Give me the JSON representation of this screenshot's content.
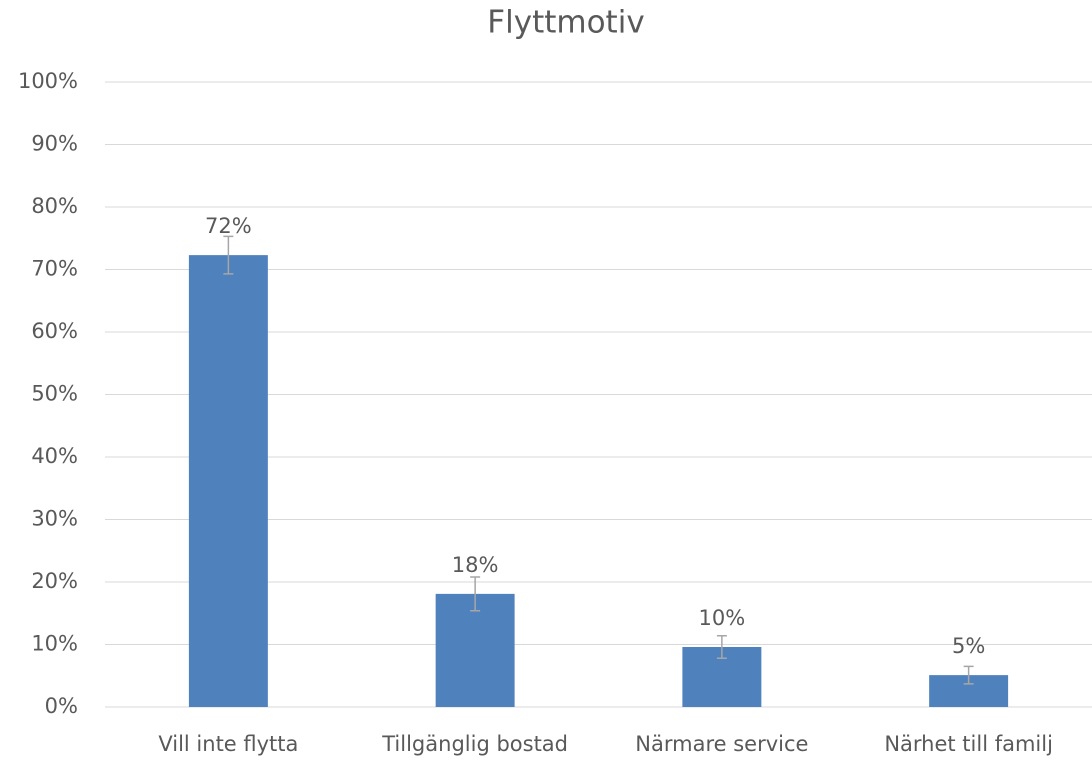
{
  "chart_data": {
    "type": "bar",
    "title": "Flyttmotiv",
    "categories": [
      "Vill inte flytta",
      "Tillgänglig bostad",
      "Närmare service",
      "Närhet till familj"
    ],
    "values": [
      72.3,
      18.1,
      9.6,
      5.1
    ],
    "value_labels": [
      "72%",
      "18%",
      "10%",
      "5%"
    ],
    "errors": [
      3.0,
      2.7,
      1.8,
      1.4
    ],
    "color": "#4f81bd",
    "error_color": "#a6a6a6",
    "ylim": [
      0,
      100
    ],
    "yticks": [
      {
        "value": 0,
        "label": "0%"
      },
      {
        "value": 10,
        "label": "10%"
      },
      {
        "value": 20,
        "label": "20%"
      },
      {
        "value": 30,
        "label": "30%"
      },
      {
        "value": 40,
        "label": "40%"
      },
      {
        "value": 50,
        "label": "50%"
      },
      {
        "value": 60,
        "label": "60%"
      },
      {
        "value": 70,
        "label": "70%"
      },
      {
        "value": 80,
        "label": "80%"
      },
      {
        "value": 90,
        "label": "90%"
      },
      {
        "value": 100,
        "label": "100%"
      }
    ],
    "grid": true
  }
}
